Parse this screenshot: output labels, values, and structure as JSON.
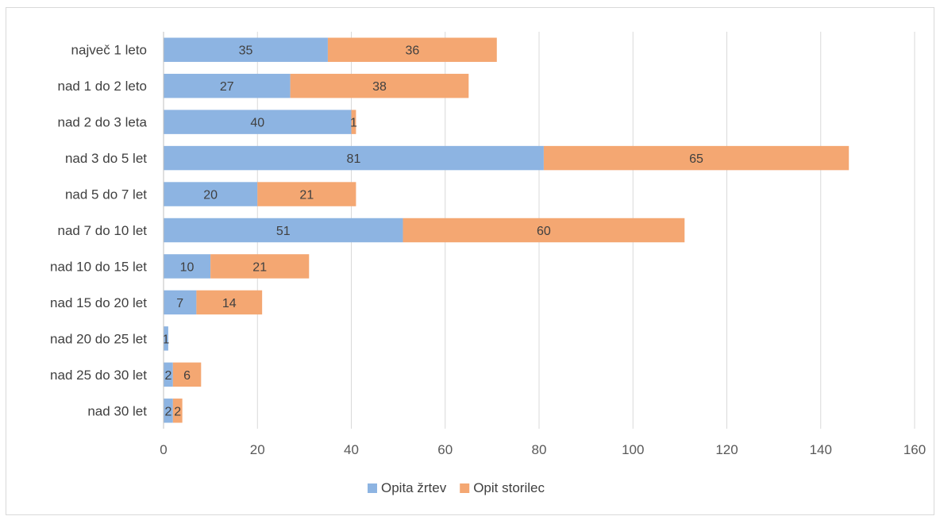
{
  "chart_data": {
    "type": "bar",
    "orientation": "horizontal",
    "stacked": true,
    "categories": [
      "največ 1 leto",
      "nad 1 do 2 leto",
      "nad 2 do 3 leta",
      "nad 3 do 5 let",
      "nad 5 do 7 let",
      "nad 7 do 10 let",
      "nad 10 do 15 let",
      "nad 15 do 20 let",
      "nad 20 do 25 let",
      "nad 25 do 30 let",
      "nad 30 let"
    ],
    "series": [
      {
        "name": "Opita žrtev",
        "color": "#8db4e2",
        "values": [
          35,
          27,
          40,
          81,
          20,
          51,
          10,
          7,
          1,
          2,
          2
        ]
      },
      {
        "name": "Opit storilec",
        "color": "#f4a772",
        "values": [
          36,
          38,
          1,
          65,
          21,
          60,
          21,
          14,
          0,
          6,
          2
        ]
      }
    ],
    "xlim": [
      0,
      160
    ],
    "xticks": [
      0,
      20,
      40,
      60,
      80,
      100,
      120,
      140,
      160
    ],
    "grid": "vertical",
    "legend": "bottom",
    "title": "",
    "xlabel": "",
    "ylabel": ""
  }
}
